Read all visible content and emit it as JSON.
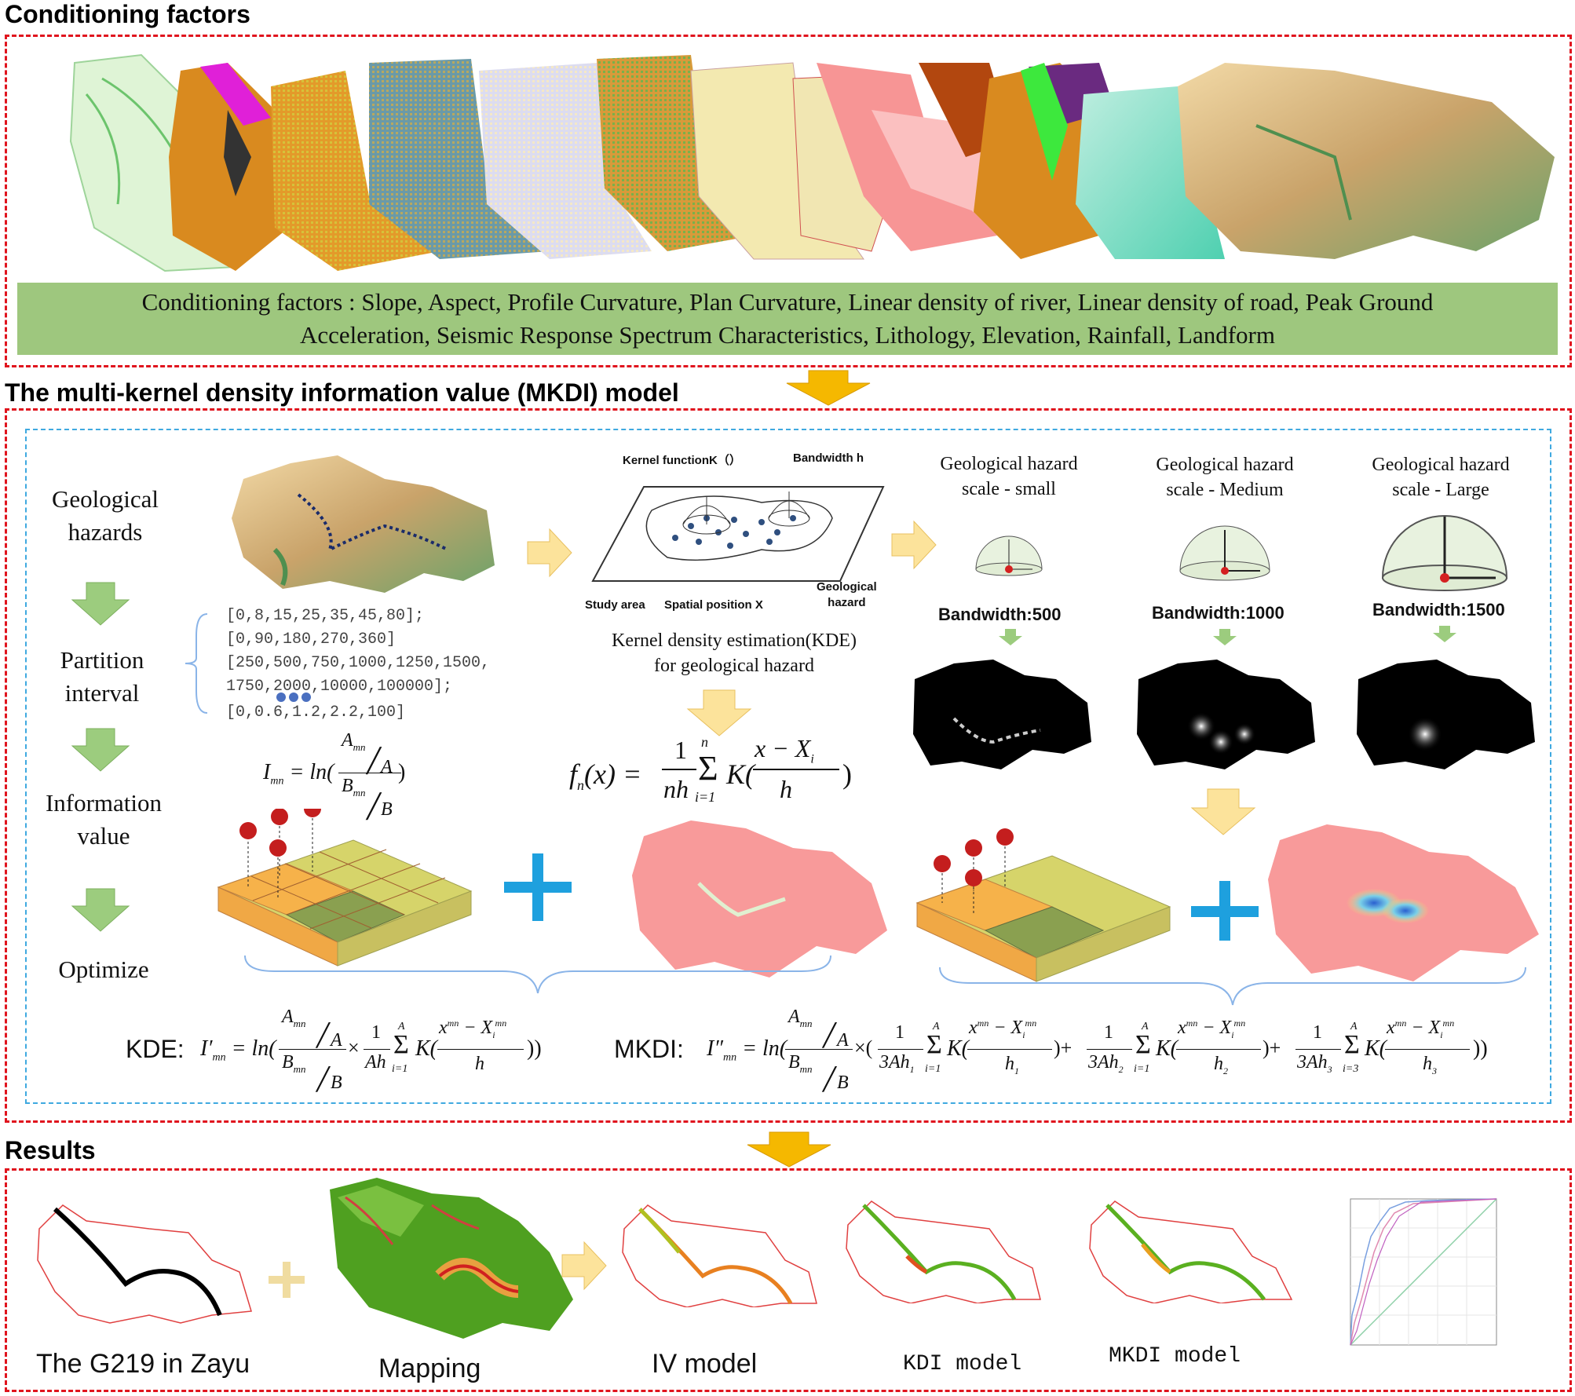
{
  "sections": {
    "conditioning_title": "Conditioning factors",
    "model_title": "The multi-kernel density information value (MKDI) model",
    "results_title": "Results"
  },
  "conditioning": {
    "line1": "Conditioning factors : Slope, Aspect, Profile Curvature, Plan Curvature, Linear density of river, Linear density of road, Peak Ground",
    "line2": "Acceleration, Seismic Response Spectrum Characteristics, Lithology, Elevation, Rainfall, Landform"
  },
  "steps": {
    "s1": [
      "Geological",
      "hazards"
    ],
    "s2": [
      "Partition",
      "interval"
    ],
    "s3": [
      "Information",
      "value"
    ],
    "s4": "Optimize"
  },
  "intervals": {
    "l1": "[0,8,15,25,35,45,80];",
    "l2": "[0,90,180,270,360]",
    "l3": "[250,500,750,1000,1250,1500,",
    "l4": "1750,2000,10000,100000];",
    "l5": "[0,0.6,1.2,2.2,100]"
  },
  "kde_diagram": {
    "kernel": "Kernel functionK（）",
    "bandwidth": "Bandwidth h",
    "study": "Study area",
    "spatial": "Spatial position X",
    "hazard": [
      "Geological",
      "hazard"
    ],
    "caption": [
      "Kernel density estimation(KDE)",
      "for geological hazard"
    ]
  },
  "scales": [
    {
      "label": [
        "Geological hazard",
        "scale - small"
      ],
      "bandwidth": "Bandwidth:500"
    },
    {
      "label": [
        "Geological hazard",
        "scale - Medium"
      ],
      "bandwidth": "Bandwidth:1000"
    },
    {
      "label": [
        "Geological hazard",
        "scale - Large"
      ],
      "bandwidth": "Bandwidth:1500"
    }
  ],
  "formulas": {
    "kde_label": "KDE:",
    "mkdi_label": "MKDI:"
  },
  "results": {
    "g219": "The G219 in Zayu",
    "mapping": "Mapping",
    "iv": "IV model",
    "kdi": "KDI model",
    "mkdi": "MKDI model"
  },
  "colors": {
    "red_dash": "#e0141e",
    "blue_dash": "#3fa9e0",
    "green_bar": "#9ec77e",
    "arrow_orange": "#f5b800",
    "arrow_green": "#9ccc7e",
    "arrow_cream": "#fce39b",
    "plus_blue": "#1ea0de"
  },
  "icons": [
    "down-arrow-icon",
    "right-arrow-icon",
    "plus-icon"
  ]
}
